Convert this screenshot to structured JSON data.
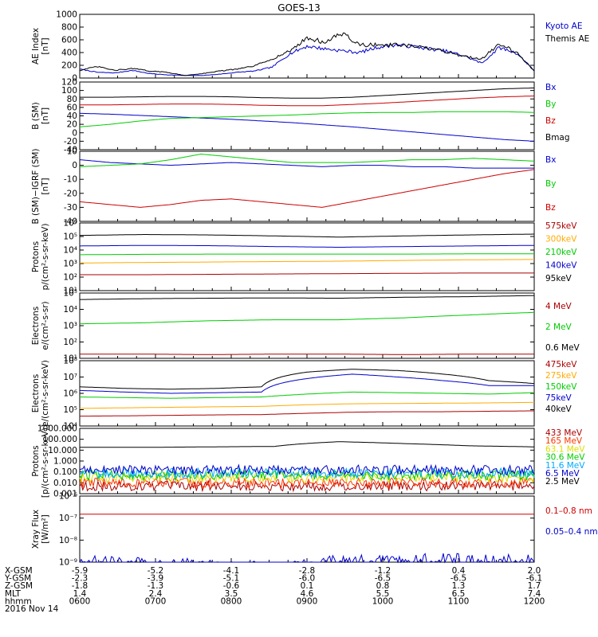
{
  "chart_data": [
    {
      "type": "line",
      "title": "GOES-13",
      "ylabel": [
        "AE Index",
        "[nT]"
      ],
      "yscale": "linear",
      "ylim": [
        0,
        1000
      ],
      "y_ticks": [
        "0",
        "200",
        "400",
        "600",
        "800",
        "1000"
      ],
      "series": [
        {
          "name": "Kyoto AE",
          "color": "#0000cc",
          "y": [
            140,
            90,
            80,
            120,
            70,
            50,
            40,
            40,
            60,
            90,
            110,
            170,
            380,
            500,
            460,
            430,
            400,
            480,
            520,
            500,
            460,
            420,
            350,
            230,
            480,
            390,
            120
          ]
        },
        {
          "name": "Themis AE",
          "color": "#000000",
          "y": [
            120,
            180,
            120,
            150,
            110,
            90,
            40,
            70,
            110,
            140,
            190,
            300,
            420,
            630,
            560,
            700,
            520,
            520,
            520,
            500,
            460,
            410,
            340,
            300,
            540,
            400,
            110
          ]
        }
      ]
    },
    {
      "type": "line",
      "ylabel": [
        "B (SM)",
        "[nT]"
      ],
      "yscale": "linear",
      "ylim": [
        -40,
        120
      ],
      "y_ticks": [
        "120",
        "100",
        "80",
        "60",
        "40",
        "20",
        "0",
        "-20",
        "-40"
      ],
      "series": [
        {
          "name": "Bx",
          "color": "#0000cc",
          "y": [
            46,
            44,
            41,
            38,
            35,
            32,
            28,
            24,
            19,
            14,
            8,
            2,
            -4,
            -10,
            -16,
            -20
          ]
        },
        {
          "name": "By",
          "color": "#00cc00",
          "y": [
            14,
            20,
            28,
            34,
            36,
            38,
            40,
            42,
            45,
            47,
            48,
            48,
            50,
            50,
            50,
            48
          ]
        },
        {
          "name": "Bz",
          "color": "#cc0000",
          "y": [
            66,
            66,
            67,
            68,
            68,
            67,
            65,
            64,
            64,
            67,
            70,
            74,
            78,
            82,
            85,
            87
          ]
        },
        {
          "name": "Bmag",
          "color": "#000000",
          "y": [
            84,
            84,
            85,
            86,
            86,
            85,
            83,
            82,
            82,
            84,
            88,
            92,
            96,
            100,
            104,
            106
          ]
        }
      ]
    },
    {
      "type": "line",
      "ylabel": [
        "B (SM)−IGRF (SM)",
        "[nT]"
      ],
      "yscale": "linear",
      "ylim": [
        -40,
        10
      ],
      "y_ticks": [
        "10",
        "0",
        "-10",
        "-20",
        "-30",
        "-40"
      ],
      "series": [
        {
          "name": "Bx",
          "color": "#0000cc",
          "y": [
            4,
            2,
            1,
            0,
            1,
            2,
            1,
            0,
            -1,
            0,
            0,
            -1,
            -1,
            -2,
            -2,
            -2
          ]
        },
        {
          "name": "By",
          "color": "#00cc00",
          "y": [
            -1,
            0,
            1,
            4,
            8,
            6,
            4,
            2,
            2,
            2,
            3,
            4,
            4,
            5,
            4,
            3
          ]
        },
        {
          "name": "Bz",
          "color": "#cc0000",
          "y": [
            -26,
            -28,
            -30,
            -28,
            -25,
            -24,
            -26,
            -28,
            -30,
            -26,
            -22,
            -18,
            -14,
            -10,
            -6,
            -3
          ]
        }
      ]
    },
    {
      "type": "line",
      "ylabel": [
        "Protons",
        "p/(cm²-s-sr-keV)"
      ],
      "yscale": "log",
      "ylim": [
        10,
        1000000
      ],
      "y_ticks": [
        "10¹",
        "10²",
        "10³",
        "10⁴",
        "10⁵",
        "10⁶"
      ],
      "series": [
        {
          "name": "575keV",
          "color": "#aa0000",
          "y": [
            150,
            150,
            160,
            170,
            180,
            190,
            200,
            200
          ]
        },
        {
          "name": "300keV",
          "color": "#ffaa00",
          "y": [
            1100,
            1200,
            1300,
            1400,
            1500,
            1700,
            1900,
            2000
          ]
        },
        {
          "name": "210keV",
          "color": "#00cc00",
          "y": [
            4500,
            4800,
            5000,
            5000,
            5000,
            5000,
            5200,
            5200
          ]
        },
        {
          "name": "140keV",
          "color": "#0000cc",
          "y": [
            20000,
            22000,
            21000,
            18000,
            16000,
            18000,
            20000,
            22000
          ]
        },
        {
          "name": "95keV",
          "color": "#000000",
          "y": [
            120000,
            140000,
            130000,
            110000,
            90000,
            110000,
            130000,
            150000
          ]
        }
      ]
    },
    {
      "type": "line",
      "ylabel": [
        "Electrons",
        "e/(cm²-s-sr)"
      ],
      "yscale": "log",
      "ylim": [
        10,
        100000
      ],
      "y_ticks": [
        "10¹",
        "10²",
        "10³",
        "10⁴",
        "10⁵"
      ],
      "series": [
        {
          "name": "4 MeV",
          "color": "#aa0000",
          "y": [
            18,
            18,
            17,
            18,
            18,
            17,
            18,
            18
          ]
        },
        {
          "name": "2 MeV",
          "color": "#00cc00",
          "y": [
            1300,
            1500,
            2000,
            2300,
            2300,
            3000,
            4500,
            6500
          ]
        },
        {
          "name": "0.6 MeV",
          "color": "#000000",
          "y": [
            40000,
            45000,
            48000,
            50000,
            48000,
            55000,
            60000,
            70000
          ]
        }
      ]
    },
    {
      "type": "line",
      "ylabel": [
        "Electrons",
        "e/(cm²-s-sr-keV)"
      ],
      "yscale": "log",
      "ylim": [
        10000,
        100000000
      ],
      "y_ticks": [
        "10⁴",
        "10⁵",
        "10⁶",
        "10⁷",
        "10⁸"
      ],
      "series": [
        {
          "name": "475keV",
          "color": "#aa0000",
          "y": [
            40000,
            42000,
            45000,
            48000,
            50000,
            60000,
            70000,
            75000,
            75000,
            80000,
            85000
          ]
        },
        {
          "name": "275keV",
          "color": "#ffaa00",
          "y": [
            120000,
            130000,
            140000,
            150000,
            160000,
            200000,
            230000,
            240000,
            250000,
            260000,
            280000
          ]
        },
        {
          "name": "150keV",
          "color": "#00cc00",
          "y": [
            600000,
            550000,
            500000,
            550000,
            600000,
            900000,
            1200000,
            1100000,
            1000000,
            900000,
            1100000
          ]
        },
        {
          "name": "75keV",
          "color": "#0000cc",
          "y": [
            1500000,
            1200000,
            1000000,
            1100000,
            1200000,
            8000000,
            15000000,
            10000000,
            6000000,
            3000000,
            3000000
          ]
        },
        {
          "name": "40keV",
          "color": "#000000",
          "y": [
            2500000,
            2000000,
            1800000,
            2000000,
            2500000,
            20000000,
            30000000,
            25000000,
            15000000,
            6000000,
            4000000
          ]
        }
      ]
    },
    {
      "type": "line",
      "ylabel": [
        "Protons",
        "[p/(cm²-s-sr-keV)]"
      ],
      "yscale": "log",
      "ylim": [
        0.001,
        1000
      ],
      "y_ticks": [
        "0.001",
        "0.010",
        "0.100",
        "1.000",
        "10.000",
        "100.000",
        "1000.000"
      ],
      "series": [
        {
          "name": "433 MeV",
          "color": "#aa0000",
          "y": [
            0.005,
            0.005,
            0.005,
            0.005,
            0.005,
            0.005,
            0.005,
            0.005
          ]
        },
        {
          "name": "165 MeV",
          "color": "#ff3300",
          "y": [
            0.01,
            0.01,
            0.01,
            0.01,
            0.01,
            0.01,
            0.01,
            0.01
          ]
        },
        {
          "name": "63.1 MeV",
          "color": "#dddd00",
          "y": [
            0.03,
            0.03,
            0.03,
            0.03,
            0.03,
            0.03,
            0.03,
            0.03
          ]
        },
        {
          "name": "30.6 MeV",
          "color": "#00cc00",
          "y": [
            0.05,
            0.05,
            0.05,
            0.05,
            0.05,
            0.05,
            0.05,
            0.05
          ]
        },
        {
          "name": "11.6 MeV",
          "color": "#00aaff",
          "y": [
            0.08,
            0.08,
            0.08,
            0.08,
            0.08,
            0.08,
            0.08,
            0.08
          ]
        },
        {
          "name": "6.5 MeV",
          "color": "#0000cc",
          "y": [
            0.15,
            0.15,
            0.15,
            0.15,
            0.15,
            0.15,
            0.15,
            0.15
          ]
        },
        {
          "name": "2.5 MeV",
          "color": "#000000",
          "y": [
            18,
            18,
            20,
            22,
            60,
            40,
            25,
            20
          ]
        }
      ]
    },
    {
      "type": "line",
      "ylabel": [
        "Xray Flux",
        "[W/m²]"
      ],
      "yscale": "log",
      "ylim": [
        1e-09,
        1e-06
      ],
      "y_ticks": [
        "10⁻⁹",
        "10⁻⁸",
        "10⁻⁷",
        "10⁻⁶"
      ],
      "series": [
        {
          "name": "0.1–0.8 nm",
          "color": "#cc0000",
          "y": [
            1.5e-07,
            1.5e-07,
            1.5e-07,
            1.5e-07,
            1.5e-07,
            1.5e-07,
            1.5e-07,
            1.5e-07
          ]
        },
        {
          "name": "0.05–0.4 nm",
          "color": "#0000cc",
          "y": [
            1e-09,
            7e-10,
            8e-10,
            5e-10,
            1e-09,
            1.2e-09,
            1.1e-09,
            1e-09
          ]
        }
      ]
    }
  ],
  "x_axis": {
    "rows": [
      {
        "label": "X-GSM",
        "values": [
          "-5.9",
          "-5.2",
          "-4.1",
          "-2.8",
          "-1.2",
          "0.4",
          "2.0"
        ]
      },
      {
        "label": "Y-GSM",
        "values": [
          "-2.3",
          "-3.9",
          "-5.1",
          "-6.0",
          "-6.5",
          "-6.5",
          "-6.1"
        ]
      },
      {
        "label": "Z-GSM",
        "values": [
          "-1.8",
          "-1.3",
          "-0.6",
          "0.1",
          "0.8",
          "1.3",
          "1.7"
        ]
      },
      {
        "label": "MLT",
        "values": [
          "1.4",
          "2.4",
          "3.5",
          "4.6",
          "5.5",
          "6.5",
          "7.4"
        ]
      },
      {
        "label": "hhmm",
        "values": [
          "0600",
          "0700",
          "0800",
          "0900",
          "1000",
          "1100",
          "1200"
        ]
      }
    ],
    "date": "2016 Nov 14"
  }
}
